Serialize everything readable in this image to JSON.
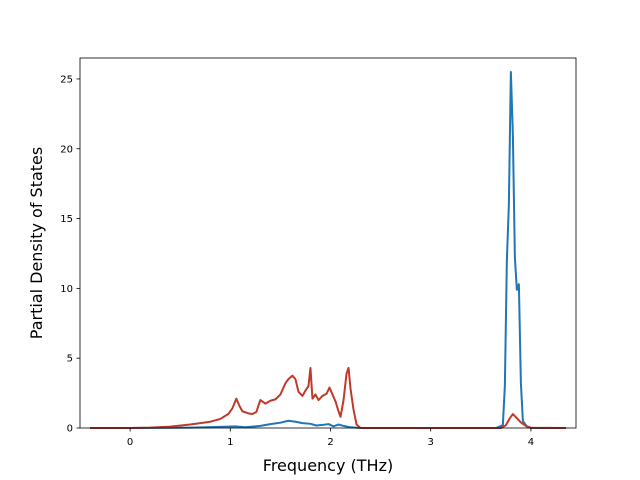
{
  "chart_data": {
    "type": "line",
    "title": "",
    "xlabel": "Frequency (THz)",
    "ylabel": "Partial Density of States",
    "xlim": [
      -0.5,
      4.45
    ],
    "ylim": [
      0,
      26.5
    ],
    "xticks": [
      0,
      1,
      2,
      3,
      4
    ],
    "yticks": [
      0,
      5,
      10,
      15,
      20,
      25
    ],
    "grid": false,
    "legend": "none",
    "series": [
      {
        "color": "#1f77b4",
        "x": [
          -0.4,
          0.0,
          0.6,
          0.9,
          1.05,
          1.15,
          1.3,
          1.4,
          1.5,
          1.58,
          1.65,
          1.72,
          1.8,
          1.86,
          1.92,
          1.98,
          2.03,
          2.08,
          2.13,
          2.2,
          2.3,
          3.65,
          3.72,
          3.74,
          3.76,
          3.78,
          3.8,
          3.82,
          3.84,
          3.86,
          3.88,
          3.9,
          3.92,
          3.96,
          4.0,
          4.35
        ],
        "y": [
          0,
          0,
          0.03,
          0.08,
          0.12,
          0.05,
          0.15,
          0.28,
          0.38,
          0.52,
          0.45,
          0.35,
          0.3,
          0.18,
          0.22,
          0.28,
          0.12,
          0.25,
          0.15,
          0.05,
          0,
          0,
          0.2,
          3.0,
          12.0,
          16.0,
          25.5,
          21.0,
          12.2,
          9.9,
          10.3,
          3.2,
          0.5,
          0.1,
          0,
          0
        ]
      },
      {
        "color": "#c0392b",
        "x": [
          -0.4,
          0.0,
          0.2,
          0.4,
          0.6,
          0.8,
          0.9,
          0.98,
          1.02,
          1.06,
          1.09,
          1.12,
          1.18,
          1.22,
          1.26,
          1.3,
          1.35,
          1.4,
          1.45,
          1.5,
          1.55,
          1.58,
          1.62,
          1.65,
          1.68,
          1.72,
          1.76,
          1.78,
          1.8,
          1.82,
          1.85,
          1.88,
          1.92,
          1.96,
          1.99,
          2.02,
          2.05,
          2.08,
          2.1,
          2.13,
          2.16,
          2.18,
          2.2,
          2.23,
          2.26,
          2.3,
          3.7,
          3.75,
          3.79,
          3.82,
          3.86,
          3.9,
          3.95,
          4.0,
          4.35
        ],
        "y": [
          0,
          0,
          0.03,
          0.1,
          0.25,
          0.45,
          0.65,
          1.0,
          1.4,
          2.1,
          1.6,
          1.2,
          1.05,
          1.0,
          1.15,
          2.0,
          1.75,
          1.95,
          2.05,
          2.4,
          3.2,
          3.5,
          3.75,
          3.5,
          2.6,
          2.3,
          2.8,
          3.0,
          4.3,
          2.1,
          2.4,
          2.0,
          2.3,
          2.45,
          2.9,
          2.4,
          1.9,
          1.2,
          0.8,
          2.0,
          3.9,
          4.3,
          2.8,
          1.3,
          0.25,
          0,
          0,
          0.2,
          0.7,
          1.0,
          0.7,
          0.4,
          0.15,
          0.02,
          0
        ]
      }
    ]
  }
}
